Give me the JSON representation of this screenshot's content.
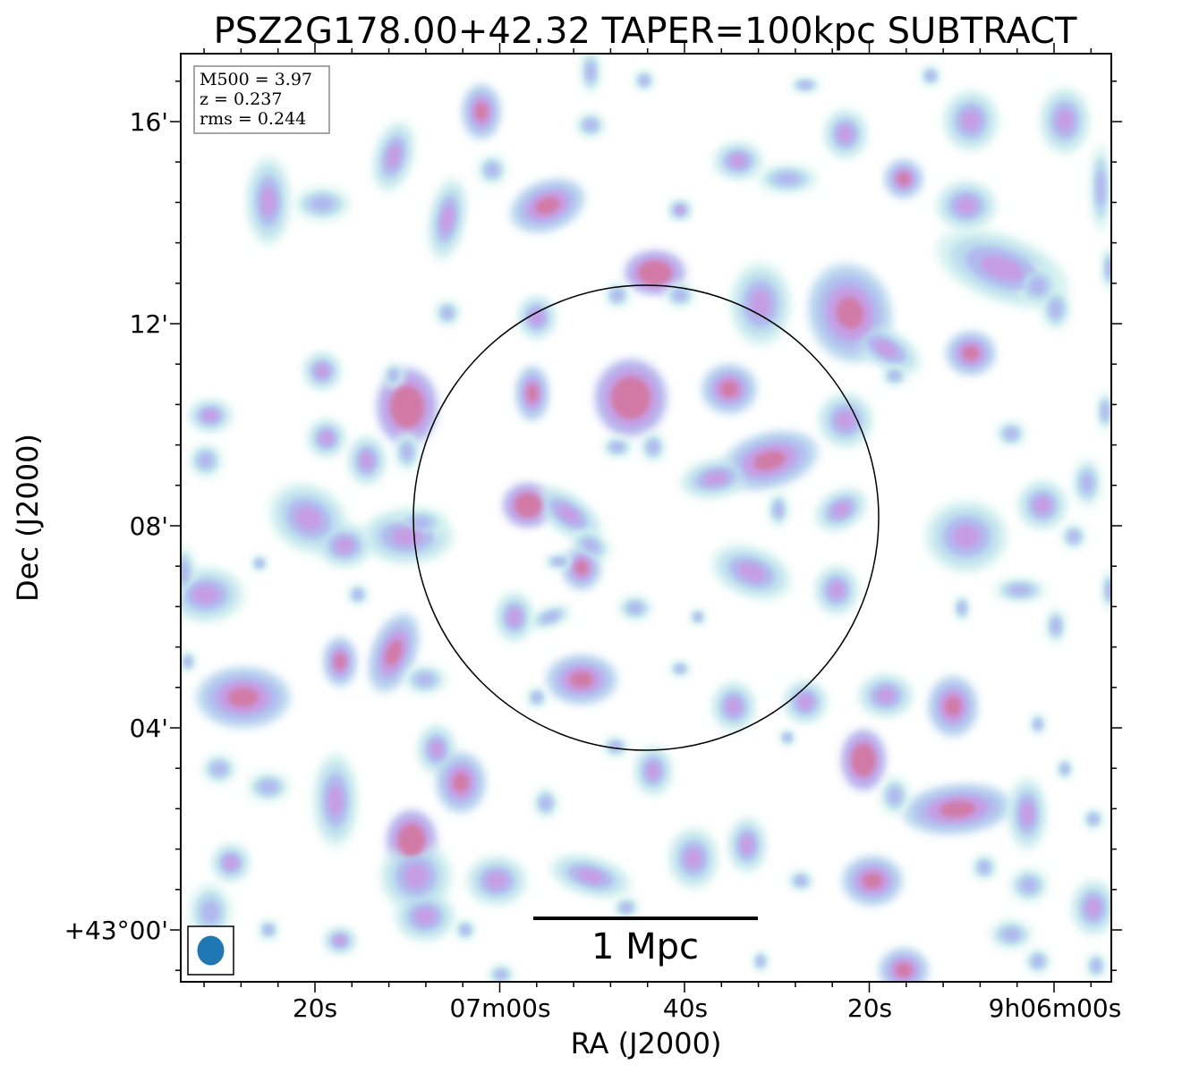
{
  "chart_data": {
    "type": "heatmap",
    "title": "PSZ2G178.00+42.32 TAPER=100kpc SUBTRACT",
    "xlabel": "RA (J2000)",
    "ylabel": "Dec (J2000)",
    "x_ticks": [
      "20s",
      "07m00s",
      "40s",
      "20s",
      "9h06m00s"
    ],
    "y_ticks": [
      "16'",
      "12'",
      "08'",
      "04'",
      "+43°00'"
    ],
    "info_box": {
      "m500": "M500 = 3.97",
      "z": "z = 0.237",
      "rms": "rms = 0.244"
    },
    "scalebar_label": "1 Mpc",
    "colormap": [
      "#d6f3f0",
      "#b9d9ee",
      "#b1b8ee",
      "#c79ce4",
      "#d27aa5"
    ],
    "circle_color": "#000000",
    "beam_color": "#1f77b4",
    "grid": false
  }
}
